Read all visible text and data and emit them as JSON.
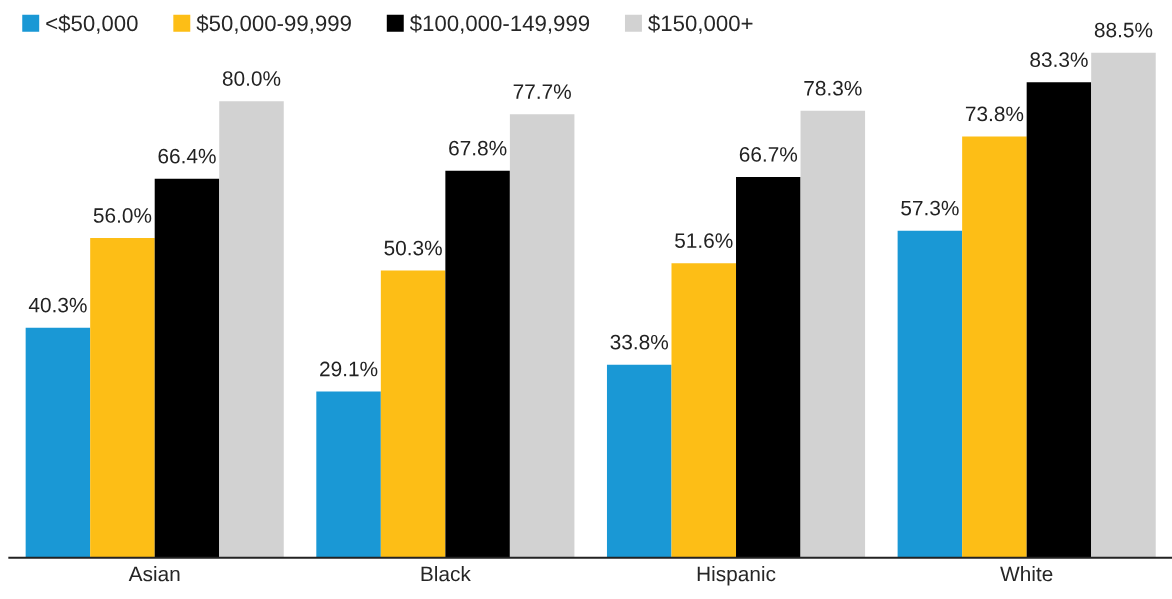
{
  "chart_data": {
    "type": "bar",
    "categories": [
      "Asian",
      "Black",
      "Hispanic",
      "White"
    ],
    "series": [
      {
        "name": "<$50,000",
        "color": "#1a98d5",
        "values": [
          40.3,
          29.1,
          33.8,
          57.3
        ],
        "value_labels": [
          "40.3%",
          "29.1%",
          "33.8%",
          "57.3%"
        ]
      },
      {
        "name": "$50,000-99,999",
        "color": "#fdbe16",
        "values": [
          56.0,
          50.3,
          51.6,
          73.8
        ],
        "value_labels": [
          "56.0%",
          "50.3%",
          "51.6%",
          "73.8%"
        ]
      },
      {
        "name": "$100,000-149,999",
        "color": "#000000",
        "values": [
          66.4,
          67.8,
          66.7,
          83.3
        ],
        "value_labels": [
          "66.4%",
          "67.8%",
          "66.7%",
          "83.3%"
        ]
      },
      {
        "name": "$150,000+",
        "color": "#d2d2d2",
        "values": [
          80.0,
          77.7,
          78.3,
          88.5
        ],
        "value_labels": [
          "80.0%",
          "77.7%",
          "78.3%",
          "88.5%"
        ]
      }
    ],
    "legend": "top left",
    "grid": false,
    "tick_labels": "x"
  }
}
